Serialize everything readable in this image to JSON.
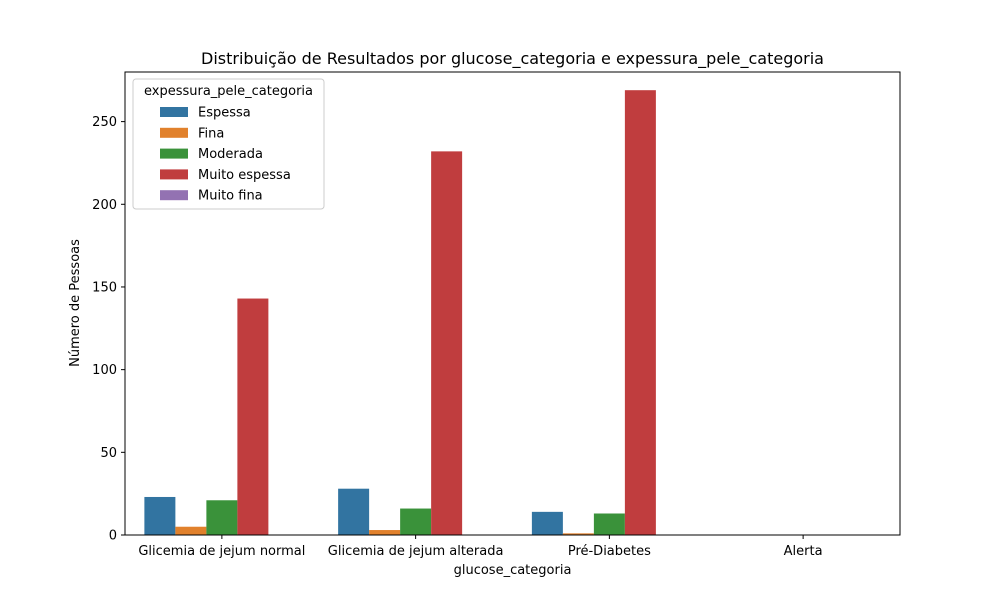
{
  "chart_data": {
    "type": "bar",
    "title": "Distribuição de Resultados por glucose_categoria e expessura_pele_categoria",
    "xlabel": "glucose_categoria",
    "ylabel": "Número de Pessoas",
    "categories": [
      "Glicemia de jejum normal",
      "Glicemia de jejum alterada",
      "Pré-Diabetes",
      "Alerta"
    ],
    "ylim": [
      0,
      280
    ],
    "yticks": [
      0,
      50,
      100,
      150,
      200,
      250
    ],
    "grid": false,
    "legend": {
      "title": "expessura_pele_categoria",
      "placement": "top-left"
    },
    "series": [
      {
        "name": "Espessa",
        "color": "#3274a1",
        "values": [
          23,
          28,
          14,
          0
        ]
      },
      {
        "name": "Fina",
        "color": "#e1812c",
        "values": [
          5,
          3,
          1,
          0
        ]
      },
      {
        "name": "Moderada",
        "color": "#3a923a",
        "values": [
          21,
          16,
          13,
          0
        ]
      },
      {
        "name": "Muito espessa",
        "color": "#c03d3e",
        "values": [
          143,
          232,
          269,
          0
        ]
      },
      {
        "name": "Muito fina",
        "color": "#9372b2",
        "values": [
          0,
          0,
          0,
          0
        ]
      }
    ]
  }
}
